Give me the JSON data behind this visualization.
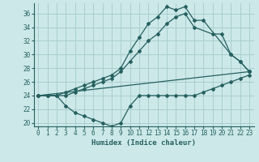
{
  "xlabel": "Humidex (Indice chaleur)",
  "bg_color": "#cce8e8",
  "grid_color": "#aacece",
  "line_color": "#266060",
  "xlim": [
    -0.5,
    23.5
  ],
  "ylim": [
    19.5,
    37.5
  ],
  "yticks": [
    20,
    22,
    24,
    26,
    28,
    30,
    32,
    34,
    36
  ],
  "xticks": [
    0,
    1,
    2,
    3,
    4,
    5,
    6,
    7,
    8,
    9,
    10,
    11,
    12,
    13,
    14,
    15,
    16,
    17,
    18,
    19,
    20,
    21,
    22,
    23
  ],
  "line1_x": [
    0,
    1,
    2,
    3,
    4,
    5,
    6,
    7,
    8,
    9,
    10,
    11,
    12,
    13,
    14,
    15,
    16,
    17,
    18,
    21,
    22,
    23
  ],
  "line1_y": [
    24,
    24,
    24,
    24.5,
    25,
    25.5,
    26,
    26.5,
    27,
    28,
    30.5,
    32.5,
    34.5,
    35.5,
    37,
    36.5,
    37,
    35,
    35,
    30,
    29,
    27.5
  ],
  "line2_x": [
    0,
    1,
    2,
    3,
    4,
    5,
    6,
    7,
    8,
    9,
    10,
    11,
    12,
    13,
    14,
    15,
    16,
    17,
    19,
    20,
    21,
    22,
    23
  ],
  "line2_y": [
    24,
    24,
    24,
    24,
    24.5,
    25,
    25.5,
    26,
    26.5,
    27.5,
    29,
    30.5,
    32,
    33,
    34.5,
    35.5,
    36,
    34,
    33,
    33,
    30,
    29,
    27.5
  ],
  "line3_x": [
    0,
    1,
    2,
    3,
    4,
    5,
    6,
    7,
    8,
    9,
    10,
    11,
    12,
    13,
    14,
    15,
    16,
    17,
    18,
    19,
    20,
    21,
    22,
    23
  ],
  "line3_y": [
    24,
    24,
    24,
    22.5,
    21.5,
    21,
    20.5,
    20,
    19.5,
    20,
    22.5,
    24,
    24,
    24,
    24,
    24,
    24,
    24,
    24.5,
    25,
    25.5,
    26,
    26.5,
    27
  ],
  "line4_x": [
    0,
    23
  ],
  "line4_y": [
    24,
    27.5
  ]
}
